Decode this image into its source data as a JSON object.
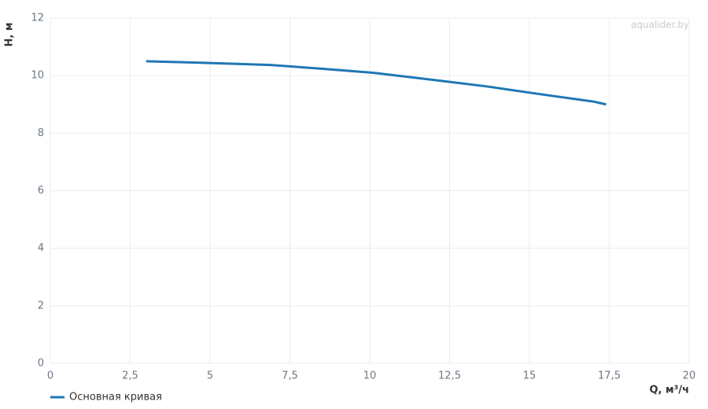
{
  "chart_data": {
    "type": "line",
    "watermark": "aqualider.by",
    "x_label": "Q, м³/ч",
    "y_label": "H, м",
    "x": [
      3,
      5,
      6.9,
      8.5,
      10.1,
      12,
      13.7,
      15.5,
      17,
      17.4
    ],
    "series": [
      {
        "name": "Основная кривая",
        "color": "#1f77b4",
        "values": [
          10.5,
          10.44,
          10.37,
          10.24,
          10.1,
          9.85,
          9.62,
          9.33,
          9.1,
          9.0
        ]
      }
    ],
    "xlim": [
      0,
      20
    ],
    "xticks": [
      0,
      {
        "value": 2.5,
        "label": "2,5"
      },
      5,
      {
        "value": 7.5,
        "label": "7,5"
      },
      10,
      {
        "value": 12.5,
        "label": "12,5"
      },
      15,
      {
        "value": 17.5,
        "label": "17,5"
      },
      20
    ],
    "ylim": [
      0,
      12
    ],
    "yticks": [
      0,
      2,
      4,
      6,
      8,
      10,
      12
    ],
    "grid": true,
    "legend": "bottom-left"
  }
}
